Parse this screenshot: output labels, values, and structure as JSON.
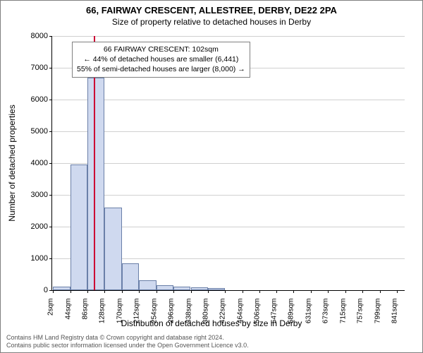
{
  "title": "66, FAIRWAY CRESCENT, ALLESTREE, DERBY, DE22 2PA",
  "subtitle": "Size of property relative to detached houses in Derby",
  "ylabel": "Number of detached properties",
  "xlabel": "Distribution of detached houses by size in Derby",
  "footer_line1": "Contains HM Land Registry data © Crown copyright and database right 2024.",
  "footer_line2": "Contains public sector information licensed under the Open Government Licence v3.0.",
  "chart": {
    "type": "histogram",
    "ylim": [
      0,
      8000
    ],
    "ytick_step": 1000,
    "yticks": [
      0,
      1000,
      2000,
      3000,
      4000,
      5000,
      6000,
      7000,
      8000
    ],
    "x_min": 0,
    "x_max": 860,
    "xtick_labels": [
      "2sqm",
      "44sqm",
      "86sqm",
      "128sqm",
      "170sqm",
      "212sqm",
      "254sqm",
      "296sqm",
      "338sqm",
      "380sqm",
      "422sqm",
      "464sqm",
      "506sqm",
      "547sqm",
      "589sqm",
      "631sqm",
      "673sqm",
      "715sqm",
      "757sqm",
      "799sqm",
      "841sqm"
    ],
    "xtick_values": [
      2,
      44,
      86,
      128,
      170,
      212,
      254,
      296,
      338,
      380,
      422,
      464,
      506,
      547,
      589,
      631,
      673,
      715,
      757,
      799,
      841
    ],
    "bin_edges": [
      2,
      44,
      86,
      128,
      170,
      212,
      254,
      296,
      338,
      380,
      422
    ],
    "bar_values": [
      120,
      3950,
      6700,
      2600,
      850,
      320,
      160,
      120,
      100,
      60
    ],
    "bar_fill": "#cfd9ef",
    "bar_stroke": "#6a7fa8",
    "background_color": "#ffffff",
    "grid_color": "#d0d0d0",
    "reference_line": {
      "x": 102,
      "color": "#cc0033"
    }
  },
  "callout": {
    "line1": "66 FAIRWAY CRESCENT: 102sqm",
    "line2": "← 44% of detached houses are smaller (6,441)",
    "line3": "55% of semi-detached houses are larger (8,000) →"
  }
}
